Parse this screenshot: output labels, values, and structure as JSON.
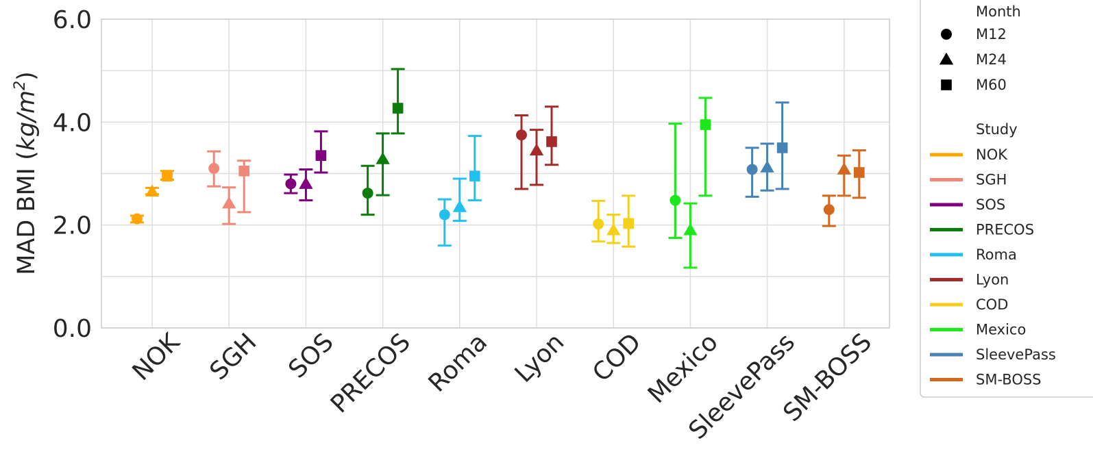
{
  "chart_data": {
    "type": "scatter",
    "ylabel_main": "MAD BMI (",
    "ylabel_unit_base": "kg/m",
    "ylabel_unit_exp": "2",
    "ylabel_close": ")",
    "ylim": [
      0,
      6
    ],
    "yticks": [
      {
        "value": 0,
        "label": "0.0"
      },
      {
        "value": 2,
        "label": "2.0"
      },
      {
        "value": 4,
        "label": "4.0"
      },
      {
        "value": 6,
        "label": "6.0"
      }
    ],
    "ygrid_minor": [
      1,
      3,
      5
    ],
    "grid": true,
    "categories": [
      "NOK",
      "SGH",
      "SOS",
      "PRECOS",
      "Roma",
      "Lyon",
      "COD",
      "Mexico",
      "SleevePass",
      "SM-BOSS"
    ],
    "colors": {
      "NOK": "#ffa500",
      "SGH": "#f08878",
      "SOS": "#800080",
      "PRECOS": "#0a7d0a",
      "Roma": "#22c0ee",
      "Lyon": "#a52a2a",
      "COD": "#f5d01a",
      "Mexico": "#1ce81c",
      "SleevePass": "#4682b4",
      "SM-BOSS": "#d2691e"
    },
    "months": [
      "M12",
      "M24",
      "M60"
    ],
    "markers": {
      "M12": "circle",
      "M24": "triangle",
      "M60": "square"
    },
    "series": [
      {
        "study": "NOK",
        "points": [
          {
            "month": "M12",
            "y": 2.12,
            "low": 2.05,
            "high": 2.18
          },
          {
            "month": "M24",
            "y": 2.65,
            "low": 2.6,
            "high": 2.72
          },
          {
            "month": "M60",
            "y": 2.95,
            "low": 2.88,
            "high": 3.05
          }
        ]
      },
      {
        "study": "SGH",
        "points": [
          {
            "month": "M12",
            "y": 3.1,
            "low": 2.75,
            "high": 3.43
          },
          {
            "month": "M24",
            "y": 2.42,
            "low": 2.02,
            "high": 2.73
          },
          {
            "month": "M60",
            "y": 3.05,
            "low": 2.25,
            "high": 3.25
          }
        ]
      },
      {
        "study": "SOS",
        "points": [
          {
            "month": "M12",
            "y": 2.8,
            "low": 2.62,
            "high": 2.98
          },
          {
            "month": "M24",
            "y": 2.8,
            "low": 2.48,
            "high": 3.08
          },
          {
            "month": "M60",
            "y": 3.35,
            "low": 3.02,
            "high": 3.82
          }
        ]
      },
      {
        "study": "PRECOS",
        "points": [
          {
            "month": "M12",
            "y": 2.62,
            "low": 2.2,
            "high": 3.15
          },
          {
            "month": "M24",
            "y": 3.28,
            "low": 2.58,
            "high": 3.78
          },
          {
            "month": "M60",
            "y": 4.27,
            "low": 3.78,
            "high": 5.03
          }
        ]
      },
      {
        "study": "Roma",
        "points": [
          {
            "month": "M12",
            "y": 2.2,
            "low": 1.6,
            "high": 2.5
          },
          {
            "month": "M24",
            "y": 2.35,
            "low": 2.08,
            "high": 2.9
          },
          {
            "month": "M60",
            "y": 2.95,
            "low": 2.48,
            "high": 3.73
          }
        ]
      },
      {
        "study": "Lyon",
        "points": [
          {
            "month": "M12",
            "y": 3.75,
            "low": 2.7,
            "high": 4.13
          },
          {
            "month": "M24",
            "y": 3.45,
            "low": 2.78,
            "high": 3.85
          },
          {
            "month": "M60",
            "y": 3.62,
            "low": 3.17,
            "high": 4.3
          }
        ]
      },
      {
        "study": "COD",
        "points": [
          {
            "month": "M12",
            "y": 2.02,
            "low": 1.68,
            "high": 2.47
          },
          {
            "month": "M24",
            "y": 1.9,
            "low": 1.65,
            "high": 2.2
          },
          {
            "month": "M60",
            "y": 2.03,
            "low": 1.58,
            "high": 2.57
          }
        ]
      },
      {
        "study": "Mexico",
        "points": [
          {
            "month": "M12",
            "y": 2.48,
            "low": 1.75,
            "high": 3.97
          },
          {
            "month": "M24",
            "y": 1.9,
            "low": 1.17,
            "high": 2.42
          },
          {
            "month": "M60",
            "y": 3.95,
            "low": 2.57,
            "high": 4.47
          }
        ]
      },
      {
        "study": "SleevePass",
        "points": [
          {
            "month": "M12",
            "y": 3.08,
            "low": 2.55,
            "high": 3.5
          },
          {
            "month": "M24",
            "y": 3.12,
            "low": 2.67,
            "high": 3.58
          },
          {
            "month": "M60",
            "y": 3.5,
            "low": 2.7,
            "high": 4.38
          }
        ]
      },
      {
        "study": "SM-BOSS",
        "points": [
          {
            "month": "M12",
            "y": 2.3,
            "low": 1.98,
            "high": 2.57
          },
          {
            "month": "M24",
            "y": 3.08,
            "low": 2.57,
            "high": 3.35
          },
          {
            "month": "M60",
            "y": 3.02,
            "low": 2.53,
            "high": 3.45
          }
        ]
      }
    ],
    "legend": {
      "placement": "right",
      "month_title": "Month",
      "month_entries": [
        "M12",
        "M24",
        "M60"
      ],
      "study_title": "Study",
      "study_entries": [
        "NOK",
        "SGH",
        "SOS",
        "PRECOS",
        "Roma",
        "Lyon",
        "COD",
        "Mexico",
        "SleevePass",
        "SM-BOSS"
      ]
    }
  }
}
